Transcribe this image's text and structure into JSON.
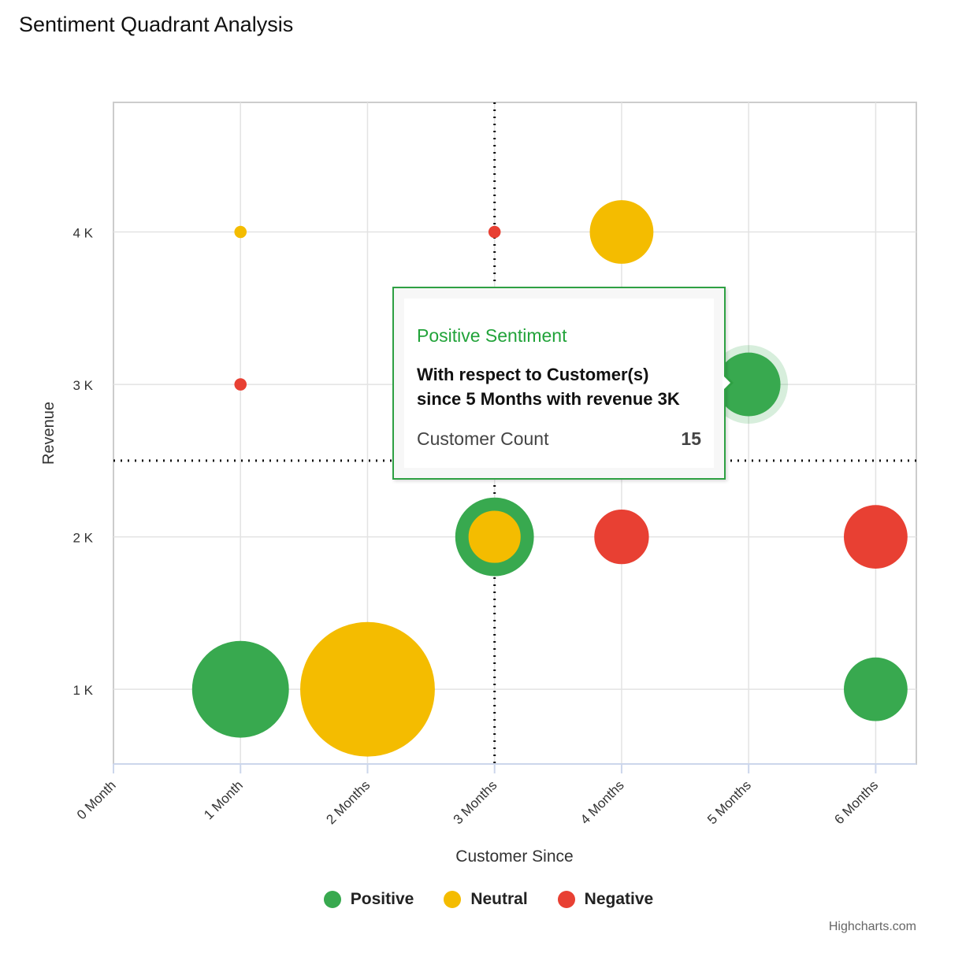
{
  "chart_data": {
    "type": "bubble",
    "title": "Sentiment Quadrant Analysis",
    "xlabel": "Customer Since",
    "ylabel": "Revenue",
    "xlim": [
      0,
      6.32
    ],
    "ylim": [
      0.51,
      4.85
    ],
    "x_ticks": [
      0,
      1,
      2,
      3,
      4,
      5,
      6
    ],
    "x_tick_labels": [
      "0 Month",
      "1 Month",
      "2 Months",
      "3 Months",
      "4 Months",
      "5 Months",
      "6 Months"
    ],
    "y_ticks": [
      1,
      2,
      3,
      4
    ],
    "y_tick_labels": [
      "1 K",
      "2 K",
      "3 K",
      "4 K"
    ],
    "plot_lines": {
      "x": 3,
      "y": 2.5
    },
    "legend_position": "bottom-center",
    "series": [
      {
        "name": "Positive",
        "color": "#38a94f",
        "points": [
          {
            "x": 1,
            "y": 1,
            "z": 35
          },
          {
            "x": 3,
            "y": 2,
            "z": 23
          },
          {
            "x": 5,
            "y": 3,
            "z": 15
          },
          {
            "x": 6,
            "y": 1,
            "z": 15
          }
        ]
      },
      {
        "name": "Neutral",
        "color": "#f4bc00",
        "points": [
          {
            "x": 1,
            "y": 4,
            "z": 0.5
          },
          {
            "x": 2,
            "y": 1,
            "z": 68
          },
          {
            "x": 3,
            "y": 2,
            "z": 10
          },
          {
            "x": 4,
            "y": 4,
            "z": 15
          }
        ]
      },
      {
        "name": "Negative",
        "color": "#e84033",
        "points": [
          {
            "x": 1,
            "y": 3,
            "z": 0.5
          },
          {
            "x": 3,
            "y": 4,
            "z": 0.5
          },
          {
            "x": 4,
            "y": 2,
            "z": 11
          },
          {
            "x": 6,
            "y": 2,
            "z": 15
          }
        ]
      }
    ]
  },
  "tooltip": {
    "header": "Positive Sentiment",
    "body_line1": "With respect to Customer(s)",
    "body_line2": "since 5 Months with revenue 3K",
    "label": "Customer Count",
    "value": "15"
  },
  "credits": "Highcharts.com"
}
